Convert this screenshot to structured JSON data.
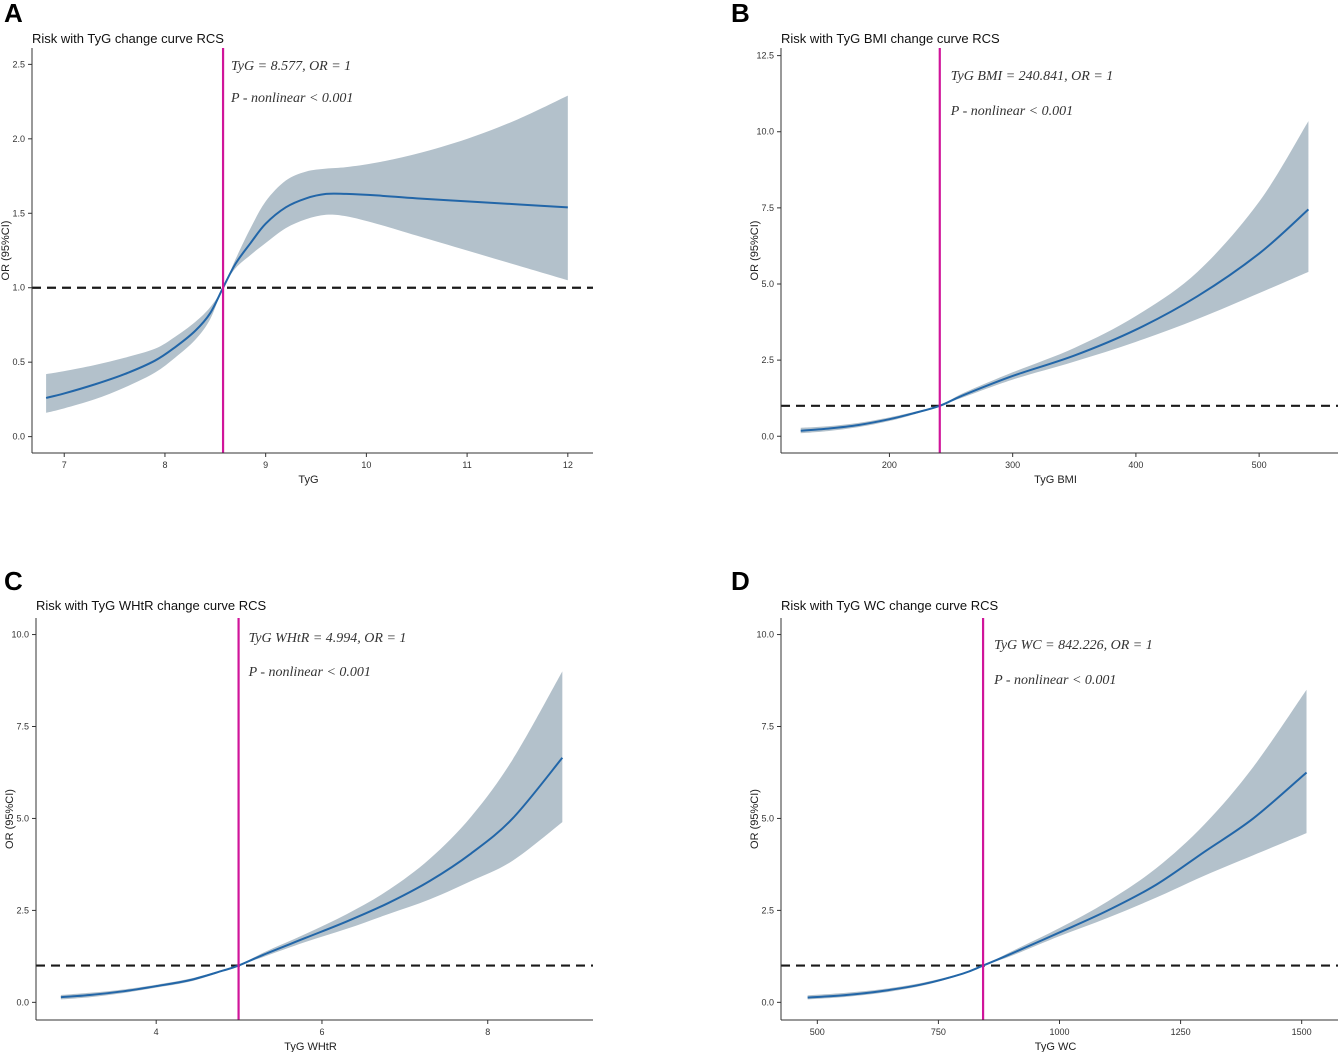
{
  "colors": {
    "band": "#b3c1cb",
    "curve": "#2266a8",
    "reference_h": "#1a1a1a",
    "reference_v": "#d0159a"
  },
  "chart_data": [
    {
      "panel": "A",
      "type": "line",
      "title": "Risk with TyG change curve RCS",
      "xlabel": "TyG",
      "ylabel": "OR (95%CI)",
      "xlim": [
        6.68,
        12.25
      ],
      "ylim": [
        -0.11,
        2.61
      ],
      "xticks": [
        7,
        8,
        9,
        10,
        11,
        12
      ],
      "xtick_labels": [
        "7",
        "8",
        "9",
        "10",
        "11",
        "12"
      ],
      "yticks": [
        0,
        0.5,
        1,
        1.5,
        2,
        2.5
      ],
      "ytick_labels": [
        "0.0",
        "0.5",
        "1.0",
        "1.5",
        "2.0",
        "2.5"
      ],
      "reference_x": 8.577,
      "reference_y": 1,
      "annotation_line1": "TyG = 8.577,   OR = 1",
      "annotation_line2": "P - nonlinear < 0.001",
      "series": [
        {
          "name": "OR",
          "x": [
            6.82,
            7.0,
            7.3,
            7.6,
            7.9,
            8.1,
            8.3,
            8.45,
            8.577,
            8.7,
            8.85,
            9.0,
            9.2,
            9.4,
            9.6,
            9.8,
            10.1,
            10.5,
            11.0,
            11.5,
            12.0
          ],
          "y": [
            0.26,
            0.29,
            0.35,
            0.42,
            0.51,
            0.6,
            0.71,
            0.83,
            1.0,
            1.16,
            1.3,
            1.43,
            1.54,
            1.6,
            1.63,
            1.63,
            1.62,
            1.6,
            1.58,
            1.56,
            1.54
          ]
        },
        {
          "name": "95% CI upper",
          "x": [
            6.82,
            7.0,
            7.3,
            7.6,
            7.9,
            8.1,
            8.3,
            8.45,
            8.577,
            8.7,
            8.85,
            9.0,
            9.2,
            9.4,
            9.6,
            9.8,
            10.1,
            10.5,
            11.0,
            11.5,
            12.0
          ],
          "y": [
            0.42,
            0.44,
            0.48,
            0.53,
            0.59,
            0.67,
            0.77,
            0.87,
            1.0,
            1.19,
            1.4,
            1.58,
            1.72,
            1.78,
            1.8,
            1.81,
            1.84,
            1.9,
            2.0,
            2.13,
            2.29
          ]
        },
        {
          "name": "95% CI lower",
          "x": [
            6.82,
            7.0,
            7.3,
            7.6,
            7.9,
            8.1,
            8.3,
            8.45,
            8.577,
            8.7,
            8.85,
            9.0,
            9.2,
            9.4,
            9.6,
            9.8,
            10.1,
            10.5,
            11.0,
            11.5,
            12.0
          ],
          "y": [
            0.16,
            0.19,
            0.25,
            0.33,
            0.43,
            0.53,
            0.65,
            0.79,
            1.0,
            1.13,
            1.22,
            1.3,
            1.4,
            1.46,
            1.49,
            1.48,
            1.43,
            1.35,
            1.25,
            1.15,
            1.05
          ]
        }
      ]
    },
    {
      "panel": "B",
      "type": "line",
      "title": "Risk with TyG BMI change curve RCS",
      "xlabel": "TyG BMI",
      "ylabel": "OR (95%CI)",
      "xlim": [
        112,
        564
      ],
      "ylim": [
        -0.55,
        12.75
      ],
      "xticks": [
        200,
        300,
        400,
        500
      ],
      "xtick_labels": [
        "200",
        "300",
        "400",
        "500"
      ],
      "yticks": [
        0,
        2.5,
        5,
        7.5,
        10,
        12.5
      ],
      "ytick_labels": [
        "0.0",
        "2.5",
        "5.0",
        "7.5",
        "10.0",
        "12.5"
      ],
      "reference_x": 240.841,
      "reference_y": 1,
      "annotation_line1": "TyG BMI = 240.841,   OR = 1",
      "annotation_line2": "P - nonlinear < 0.001",
      "series": [
        {
          "name": "OR",
          "x": [
            128,
            150,
            175,
            200,
            220,
            240.841,
            260,
            300,
            350,
            400,
            450,
            500,
            540
          ],
          "y": [
            0.18,
            0.25,
            0.37,
            0.56,
            0.76,
            1.0,
            1.35,
            1.98,
            2.65,
            3.5,
            4.6,
            6.0,
            7.45
          ]
        },
        {
          "name": "95% CI upper",
          "x": [
            128,
            150,
            175,
            200,
            220,
            240.841,
            260,
            300,
            350,
            400,
            450,
            500,
            540
          ],
          "y": [
            0.28,
            0.33,
            0.44,
            0.62,
            0.8,
            1.0,
            1.42,
            2.1,
            2.9,
            3.95,
            5.4,
            7.7,
            10.35
          ]
        },
        {
          "name": "95% CI lower",
          "x": [
            128,
            150,
            175,
            200,
            220,
            240.841,
            260,
            300,
            350,
            400,
            450,
            500,
            540
          ],
          "y": [
            0.1,
            0.17,
            0.3,
            0.5,
            0.72,
            1.0,
            1.28,
            1.86,
            2.45,
            3.1,
            3.85,
            4.7,
            5.4
          ]
        }
      ]
    },
    {
      "panel": "C",
      "type": "line",
      "title": "Risk with TyG WHtR change curve RCS",
      "xlabel": "TyG WHtR",
      "ylabel": "OR (95%CI)",
      "xlim": [
        2.55,
        9.27
      ],
      "ylim": [
        -0.48,
        10.45
      ],
      "xticks": [
        4,
        6,
        8
      ],
      "xtick_labels": [
        "4",
        "6",
        "8"
      ],
      "yticks": [
        0,
        2.5,
        5,
        7.5,
        10
      ],
      "ytick_labels": [
        "0.0",
        "2.5",
        "5.0",
        "7.5",
        "10.0"
      ],
      "reference_x": 4.994,
      "reference_y": 1,
      "annotation_line1": "TyG WHtR = 4.994,   OR = 1",
      "annotation_line2": "P - nonlinear < 0.001",
      "series": [
        {
          "name": "OR",
          "x": [
            2.85,
            3.2,
            3.6,
            4.0,
            4.4,
            4.8,
            4.994,
            5.3,
            5.8,
            6.3,
            6.8,
            7.3,
            7.8,
            8.3,
            8.9
          ],
          "y": [
            0.14,
            0.2,
            0.3,
            0.44,
            0.6,
            0.86,
            1.0,
            1.3,
            1.75,
            2.2,
            2.7,
            3.3,
            4.05,
            5.0,
            6.65
          ]
        },
        {
          "name": "95% CI upper",
          "x": [
            2.85,
            3.2,
            3.6,
            4.0,
            4.4,
            4.8,
            4.994,
            5.3,
            5.8,
            6.3,
            6.8,
            7.3,
            7.8,
            8.3,
            8.9
          ],
          "y": [
            0.2,
            0.26,
            0.35,
            0.48,
            0.64,
            0.88,
            1.0,
            1.36,
            1.86,
            2.4,
            3.05,
            3.9,
            5.05,
            6.6,
            9.0
          ]
        },
        {
          "name": "95% CI lower",
          "x": [
            2.85,
            3.2,
            3.6,
            4.0,
            4.4,
            4.8,
            4.994,
            5.3,
            5.8,
            6.3,
            6.8,
            7.3,
            7.8,
            8.3,
            8.9
          ],
          "y": [
            0.08,
            0.14,
            0.25,
            0.4,
            0.56,
            0.84,
            1.0,
            1.24,
            1.64,
            2.0,
            2.4,
            2.8,
            3.3,
            3.85,
            4.9
          ]
        }
      ]
    },
    {
      "panel": "D",
      "type": "line",
      "title": "Risk with TyG WC change curve RCS",
      "xlabel": "TyG WC",
      "ylabel": "OR (95%CI)",
      "xlim": [
        425,
        1575
      ],
      "ylim": [
        -0.48,
        10.45
      ],
      "xticks": [
        500,
        750,
        1000,
        1250,
        1500
      ],
      "xtick_labels": [
        "500",
        "750",
        "1000",
        "1250",
        "1500"
      ],
      "yticks": [
        0,
        2.5,
        5,
        7.5,
        10
      ],
      "ytick_labels": [
        "0.0",
        "2.5",
        "5.0",
        "7.5",
        "10.0"
      ],
      "reference_x": 842.226,
      "reference_y": 1,
      "annotation_line1": "TyG WC = 842.226,   OR = 1",
      "annotation_line2": "P - nonlinear < 0.001",
      "series": [
        {
          "name": "OR",
          "x": [
            480,
            560,
            640,
            720,
            800,
            842.226,
            900,
            1000,
            1100,
            1200,
            1300,
            1400,
            1510
          ],
          "y": [
            0.13,
            0.2,
            0.32,
            0.5,
            0.78,
            1.0,
            1.32,
            1.9,
            2.5,
            3.2,
            4.1,
            5.0,
            6.25
          ]
        },
        {
          "name": "95% CI upper",
          "x": [
            480,
            560,
            640,
            720,
            800,
            842.226,
            900,
            1000,
            1100,
            1200,
            1300,
            1400,
            1510
          ],
          "y": [
            0.19,
            0.26,
            0.37,
            0.54,
            0.8,
            1.0,
            1.38,
            2.02,
            2.75,
            3.65,
            4.85,
            6.4,
            8.5
          ]
        },
        {
          "name": "95% CI lower",
          "x": [
            480,
            560,
            640,
            720,
            800,
            842.226,
            900,
            1000,
            1100,
            1200,
            1300,
            1400,
            1510
          ],
          "y": [
            0.08,
            0.15,
            0.27,
            0.46,
            0.76,
            1.0,
            1.26,
            1.8,
            2.3,
            2.85,
            3.45,
            4.0,
            4.6
          ]
        }
      ]
    }
  ]
}
